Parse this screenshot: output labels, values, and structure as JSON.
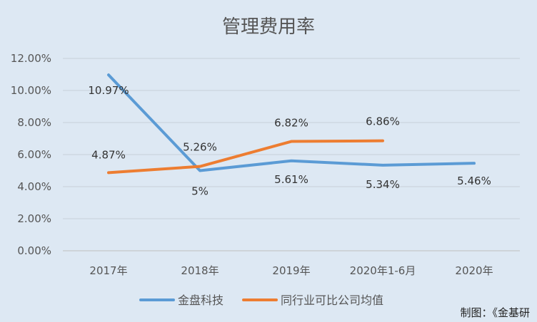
{
  "title": "管理费用率",
  "credit": "制图：《金基研",
  "chart_data": {
    "type": "line",
    "title": "管理费用率",
    "categories": [
      "2017年",
      "2018年",
      "2019年",
      "2020年1-6月",
      "2020年"
    ],
    "y_ticks": [
      "0.00%",
      "2.00%",
      "4.00%",
      "6.00%",
      "8.00%",
      "10.00%",
      "12.00%"
    ],
    "ylim": [
      0,
      12
    ],
    "grid": true,
    "legend_position": "bottom",
    "series": [
      {
        "name": "金盘科技",
        "color": "#5b9bd5",
        "values": [
          10.97,
          5.0,
          5.61,
          5.34,
          5.46
        ],
        "labels": [
          "10.97%",
          "5%",
          "5.61%",
          "5.34%",
          "5.46%"
        ]
      },
      {
        "name": "同行业可比公司均值",
        "color": "#ed7d31",
        "values": [
          4.87,
          5.26,
          6.82,
          6.86,
          null
        ],
        "labels": [
          "4.87%",
          "5.26%",
          "6.82%",
          "6.86%",
          null
        ]
      }
    ]
  }
}
